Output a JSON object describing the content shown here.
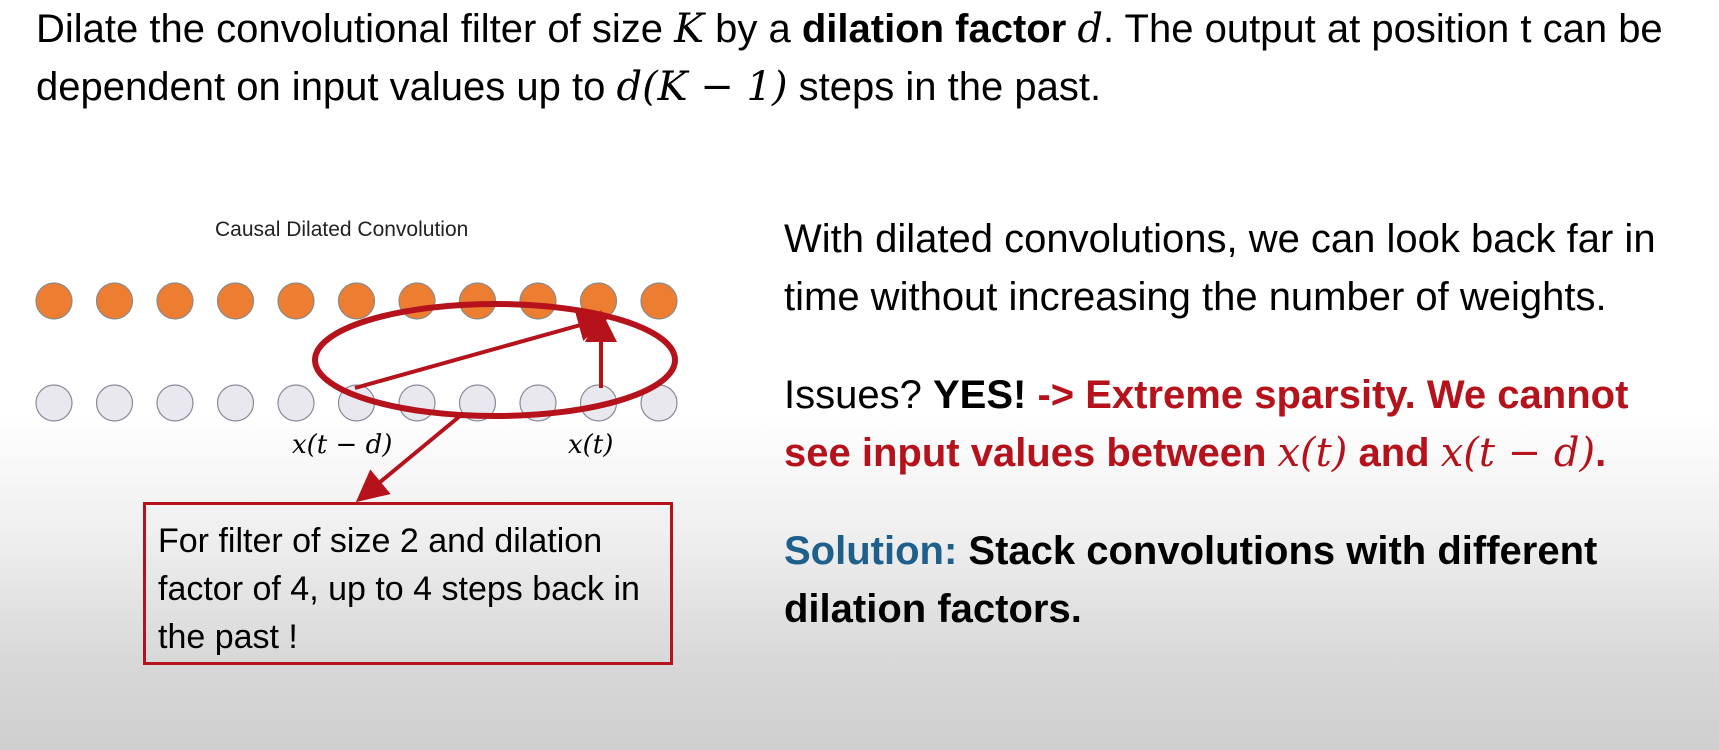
{
  "intro": {
    "part1": "Dilate the convolutional filter of size ",
    "var_K": "K",
    "part2": " by a ",
    "bold": "dilation factor",
    "part3": " ",
    "var_d": "d",
    "part4": ". The output at position t can be dependent on input values up to ",
    "math": "d(K − 1)",
    "part5": " steps in the past."
  },
  "diagram": {
    "title": "Causal Dilated Convolution",
    "label_left": "x(t − d)",
    "label_right": "x(t)",
    "output_count": 11,
    "input_count": 11,
    "colors": {
      "output_fill": "#ed7d31",
      "input_fill": "#e8e8ee",
      "accent": "#b5121b"
    },
    "note": "For filter of size 2 and dilation factor of 4, up to 4 steps back in the past !"
  },
  "right": {
    "p1": "With dilated convolutions, we can look back far in time without increasing the number of weights.",
    "issues_label": "Issues? ",
    "yes": "YES!",
    "issue_text": " -> Extreme sparsity.  We cannot see input values between ",
    "xt": "x(t)",
    "and": " and ",
    "xtd": "x(t − d)",
    "end": ".",
    "solution_label": "Solution:",
    "solution_text": " Stack convolutions with different dilation factors."
  }
}
